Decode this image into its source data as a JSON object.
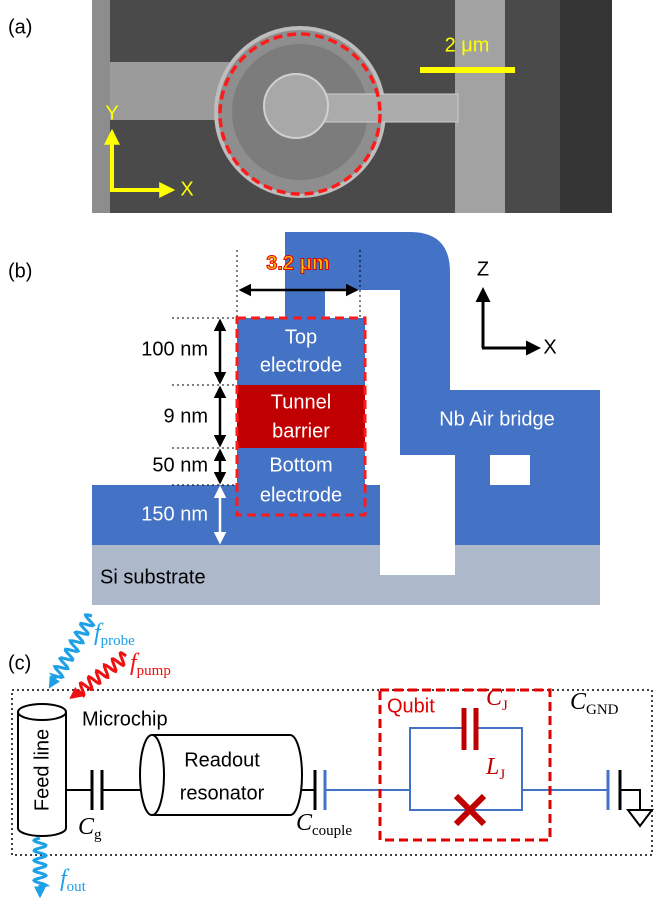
{
  "figure": {
    "a": {
      "label": "(a)",
      "scale_bar": "2 μm",
      "axis_y": "Y",
      "axis_x": "X"
    },
    "b": {
      "label": "(b)",
      "width": "3.2 μm",
      "axis_z": "Z",
      "axis_x": "X",
      "thicknesses": [
        "100 nm",
        "9 nm",
        "50 nm",
        "150 nm"
      ],
      "top_electrode": [
        "Top",
        "electrode"
      ],
      "tunnel_barrier": [
        "Tunnel",
        "barrier"
      ],
      "bottom_electrode": [
        "Bottom",
        "electrode"
      ],
      "air_bridge": "Nb Air bridge",
      "substrate": "Si substrate"
    },
    "c": {
      "label": "(c)",
      "chip": "Microchip",
      "feed_line": "Feed line",
      "resonator": [
        "Readout",
        "resonator"
      ],
      "qubit": "Qubit",
      "f_probe": {
        "symbol": "f",
        "subscript": "probe"
      },
      "f_pump": {
        "symbol": "f",
        "subscript": "pump"
      },
      "f_out": {
        "symbol": "f",
        "subscript": "out"
      },
      "C_g": {
        "symbol": "C",
        "subscript": "g"
      },
      "C_couple": {
        "symbol": "C",
        "subscript": "couple"
      },
      "C_J": {
        "symbol": "C",
        "subscript": "J"
      },
      "L_J": {
        "symbol": "L",
        "subscript": "J"
      },
      "C_GND": {
        "symbol": "C",
        "subscript": "GND"
      }
    }
  }
}
